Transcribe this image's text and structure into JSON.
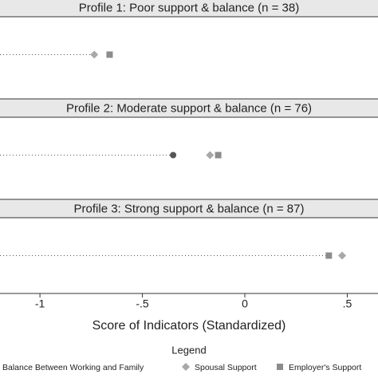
{
  "chart_data": {
    "type": "dot",
    "categories": [
      "Profile 1: Poor support & balance (n = 38)",
      "Profile 2: Moderate support & balance (n = 76)",
      "Profile 3: Strong support & balance (n = 87)"
    ],
    "series": [
      {
        "name": "Balance Between Working and Family",
        "color": "#555555",
        "marker": "circle",
        "values": [
          null,
          -0.35,
          null
        ]
      },
      {
        "name": "Spousal Support",
        "color": "#a8a8a8",
        "marker": "diamond",
        "values": [
          -0.735,
          -0.17,
          0.475
        ]
      },
      {
        "name": "Employer's Support",
        "color": "#8c8c8c",
        "marker": "square",
        "values": [
          -0.66,
          -0.13,
          0.41
        ]
      }
    ],
    "xlim": [
      -1.195,
      0.65
    ],
    "xticks": [
      -1,
      {
        "value": -0.5,
        "label": "-.5"
      },
      0,
      {
        "value": 0.5,
        "label": ".5"
      }
    ],
    "xlabel": "Score of Indicators (Standardized)",
    "legend_title": "Legend"
  }
}
